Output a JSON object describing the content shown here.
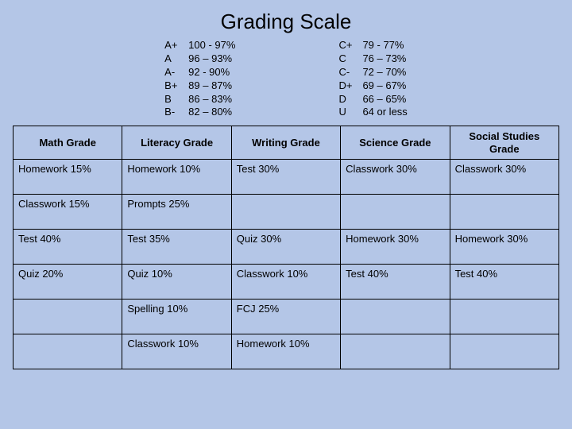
{
  "title": "Grading Scale",
  "scale_left": [
    {
      "label": "A+",
      "range": "100 - 97%"
    },
    {
      "label": "A",
      "range": "96 – 93%"
    },
    {
      "label": "A-",
      "range": "92 - 90%"
    },
    {
      "label": "B+",
      "range": "89 – 87%"
    },
    {
      "label": "B",
      "range": "86 – 83%"
    },
    {
      "label": "B-",
      "range": "82 – 80%"
    }
  ],
  "scale_right": [
    {
      "label": "C+",
      "range": "79 - 77%"
    },
    {
      "label": "C",
      "range": "76 – 73%"
    },
    {
      "label": "C-",
      "range": "72 – 70%"
    },
    {
      "label": "D+",
      "range": "69 – 67%"
    },
    {
      "label": "D",
      "range": "66 – 65%"
    },
    {
      "label": "U",
      "range": "64 or less"
    }
  ],
  "table": {
    "columns": [
      "Math Grade",
      "Literacy Grade",
      "Writing Grade",
      "Science Grade",
      "Social Studies Grade"
    ],
    "rows": [
      [
        "Homework 15%",
        "Homework 10%",
        "Test 30%",
        "Classwork 30%",
        "Classwork 30%"
      ],
      [
        "Classwork 15%",
        "Prompts 25%",
        "",
        "",
        ""
      ],
      [
        "Test 40%",
        "Test 35%",
        "Quiz 30%",
        "Homework 30%",
        "Homework 30%"
      ],
      [
        "Quiz 20%",
        "Quiz 10%",
        "Classwork 10%",
        "Test 40%",
        "Test 40%"
      ],
      [
        "",
        "Spelling 10%",
        "FCJ 25%",
        "",
        ""
      ],
      [
        "",
        "Classwork 10%",
        "Homework 10%",
        "",
        ""
      ]
    ]
  },
  "style": {
    "background_color": "#b4c6e7",
    "border_color": "#000000",
    "title_font": "Arial",
    "title_fontsize_pt": 20,
    "body_font": "Comic Sans MS",
    "body_fontsize_pt": 10,
    "columns": 5
  }
}
